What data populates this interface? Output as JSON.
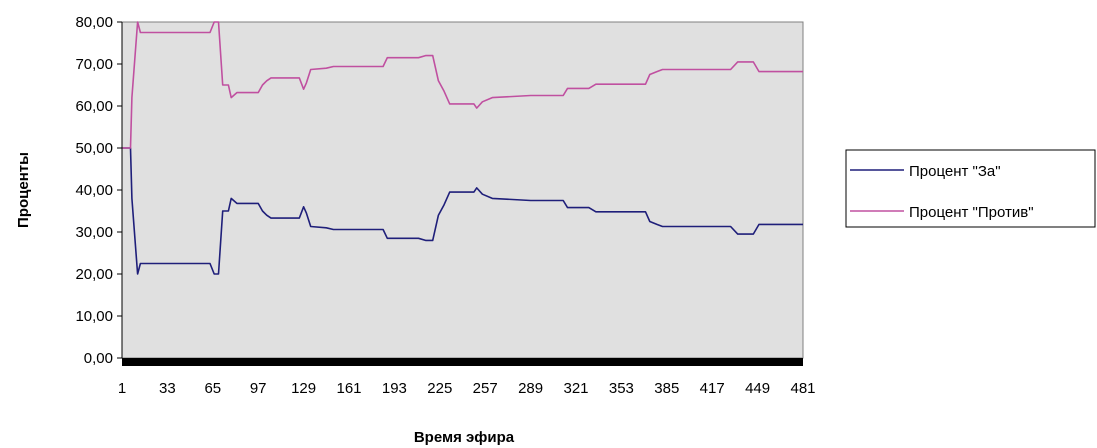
{
  "chart_data": {
    "type": "line",
    "xlabel": "Время эфира",
    "ylabel": "Проценты",
    "ylim": [
      0,
      80
    ],
    "yticks": [
      "0,00",
      "10,00",
      "20,00",
      "30,00",
      "40,00",
      "50,00",
      "60,00",
      "70,00",
      "80,00"
    ],
    "xticks": [
      "1",
      "33",
      "65",
      "97",
      "129",
      "161",
      "193",
      "225",
      "257",
      "289",
      "321",
      "353",
      "385",
      "417",
      "449",
      "481"
    ],
    "xlim": [
      1,
      481
    ],
    "grid": false,
    "legend_position": "right",
    "plot_background": "#e0e0e0",
    "series": [
      {
        "name": "Процент \"За\"",
        "color": "#1f1f7a",
        "points": [
          [
            1,
            50
          ],
          [
            7,
            50
          ],
          [
            8,
            38
          ],
          [
            12,
            20
          ],
          [
            14,
            22.5
          ],
          [
            63,
            22.5
          ],
          [
            66,
            20
          ],
          [
            69,
            20
          ],
          [
            72,
            35
          ],
          [
            76,
            35
          ],
          [
            78,
            38
          ],
          [
            82,
            36.8
          ],
          [
            97,
            36.8
          ],
          [
            100,
            35
          ],
          [
            103,
            34
          ],
          [
            106,
            33.3
          ],
          [
            126,
            33.3
          ],
          [
            129,
            36
          ],
          [
            131,
            34.5
          ],
          [
            134,
            31.3
          ],
          [
            145,
            31
          ],
          [
            150,
            30.6
          ],
          [
            185,
            30.6
          ],
          [
            188,
            28.5
          ],
          [
            191,
            28.5
          ],
          [
            210,
            28.5
          ],
          [
            215,
            28
          ],
          [
            220,
            28
          ],
          [
            224,
            34
          ],
          [
            228,
            36.5
          ],
          [
            232,
            39.5
          ],
          [
            249,
            39.5
          ],
          [
            251,
            40.5
          ],
          [
            255,
            39
          ],
          [
            262,
            38
          ],
          [
            289,
            37.5
          ],
          [
            312,
            37.5
          ],
          [
            315,
            35.8
          ],
          [
            330,
            35.8
          ],
          [
            335,
            34.8
          ],
          [
            370,
            34.8
          ],
          [
            373,
            32.5
          ],
          [
            378,
            31.8
          ],
          [
            382,
            31.3
          ],
          [
            430,
            31.3
          ],
          [
            435,
            29.5
          ],
          [
            446,
            29.5
          ],
          [
            450,
            31.8
          ],
          [
            481,
            31.8
          ]
        ]
      },
      {
        "name": "Процент \"Против\"",
        "color": "#c050a0",
        "points": [
          [
            1,
            50
          ],
          [
            7,
            50
          ],
          [
            8,
            62
          ],
          [
            12,
            80
          ],
          [
            14,
            77.5
          ],
          [
            63,
            77.5
          ],
          [
            66,
            80
          ],
          [
            69,
            80
          ],
          [
            72,
            65
          ],
          [
            76,
            65
          ],
          [
            78,
            62
          ],
          [
            82,
            63.2
          ],
          [
            97,
            63.2
          ],
          [
            100,
            65
          ],
          [
            103,
            66
          ],
          [
            106,
            66.7
          ],
          [
            126,
            66.7
          ],
          [
            129,
            64
          ],
          [
            131,
            65.5
          ],
          [
            134,
            68.7
          ],
          [
            145,
            69
          ],
          [
            150,
            69.4
          ],
          [
            185,
            69.4
          ],
          [
            188,
            71.5
          ],
          [
            191,
            71.5
          ],
          [
            210,
            71.5
          ],
          [
            215,
            72
          ],
          [
            220,
            72
          ],
          [
            224,
            66
          ],
          [
            228,
            63.5
          ],
          [
            232,
            60.5
          ],
          [
            249,
            60.5
          ],
          [
            251,
            59.5
          ],
          [
            255,
            61
          ],
          [
            262,
            62
          ],
          [
            289,
            62.5
          ],
          [
            312,
            62.5
          ],
          [
            315,
            64.2
          ],
          [
            330,
            64.2
          ],
          [
            335,
            65.2
          ],
          [
            370,
            65.2
          ],
          [
            373,
            67.5
          ],
          [
            378,
            68.2
          ],
          [
            382,
            68.7
          ],
          [
            430,
            68.7
          ],
          [
            435,
            70.5
          ],
          [
            446,
            70.5
          ],
          [
            450,
            68.2
          ],
          [
            481,
            68.2
          ]
        ]
      }
    ]
  }
}
